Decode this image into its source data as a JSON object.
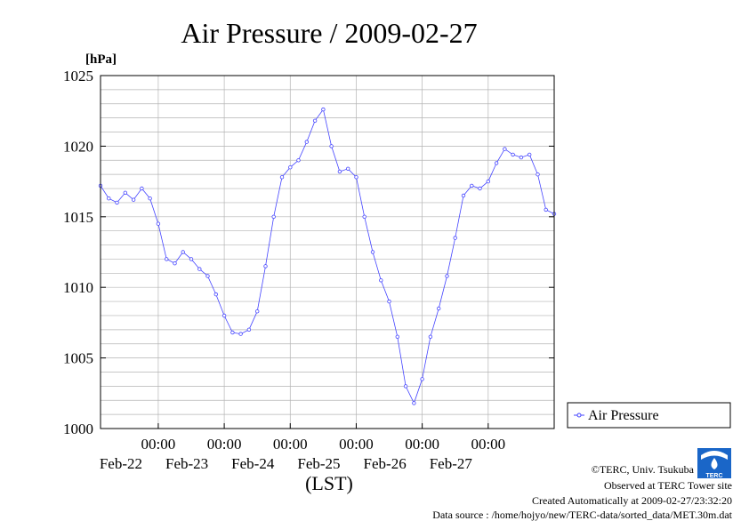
{
  "title": "Air Pressure / 2009-02-27",
  "yunit": "[hPa]",
  "xlabel": "(LST)",
  "legend_label": "Air Pressure",
  "credits": {
    "line1": "©TERC, Univ. Tsukuba",
    "line2": "Observed at TERC Tower site",
    "line3": "Created Automatically at 2009-02-27/23:32:20",
    "line4": "Data source : /home/hojyo/new/TERC-data/sorted_data/MET.30m.dat"
  },
  "logo_text": "TERC",
  "colors": {
    "series": "#4444ff",
    "grid": "#b4b4b4"
  },
  "chart_data": {
    "type": "line",
    "ylim": [
      1000,
      1025
    ],
    "yticks": [
      1000,
      1005,
      1010,
      1015,
      1020,
      1025
    ],
    "ytick_labels": [
      "1000",
      "1005",
      "1010",
      "1015",
      "1020",
      "1025"
    ],
    "xlim_days": [
      "2009-02-21 03:00",
      "2009-02-28 00:00"
    ],
    "xtick_labels": [
      {
        "time": "00:00",
        "date": "Feb-22"
      },
      {
        "time": "00:00",
        "date": "Feb-23"
      },
      {
        "time": "00:00",
        "date": "Feb-24"
      },
      {
        "time": "00:00",
        "date": "Feb-25"
      },
      {
        "time": "00:00",
        "date": "Feb-26"
      },
      {
        "time": "00:00",
        "date": "Feb-27"
      }
    ],
    "series": [
      {
        "name": "Air Pressure",
        "points": [
          [
            "2009-02-21 03:00",
            1017.2
          ],
          [
            "2009-02-21 06:00",
            1016.3
          ],
          [
            "2009-02-21 09:00",
            1016.0
          ],
          [
            "2009-02-21 12:00",
            1016.7
          ],
          [
            "2009-02-21 15:00",
            1016.2
          ],
          [
            "2009-02-21 18:00",
            1017.0
          ],
          [
            "2009-02-21 21:00",
            1016.3
          ],
          [
            "2009-02-22 00:00",
            1014.5
          ],
          [
            "2009-02-22 03:00",
            1012.0
          ],
          [
            "2009-02-22 06:00",
            1011.7
          ],
          [
            "2009-02-22 09:00",
            1012.5
          ],
          [
            "2009-02-22 12:00",
            1012.0
          ],
          [
            "2009-02-22 15:00",
            1011.3
          ],
          [
            "2009-02-22 18:00",
            1010.8
          ],
          [
            "2009-02-22 21:00",
            1009.5
          ],
          [
            "2009-02-23 00:00",
            1008.0
          ],
          [
            "2009-02-23 03:00",
            1006.8
          ],
          [
            "2009-02-23 06:00",
            1006.7
          ],
          [
            "2009-02-23 09:00",
            1007.0
          ],
          [
            "2009-02-23 12:00",
            1008.3
          ],
          [
            "2009-02-23 15:00",
            1011.5
          ],
          [
            "2009-02-23 18:00",
            1015.0
          ],
          [
            "2009-02-23 21:00",
            1017.8
          ],
          [
            "2009-02-24 00:00",
            1018.5
          ],
          [
            "2009-02-24 03:00",
            1019.0
          ],
          [
            "2009-02-24 06:00",
            1020.3
          ],
          [
            "2009-02-24 09:00",
            1021.8
          ],
          [
            "2009-02-24 12:00",
            1022.6
          ],
          [
            "2009-02-24 15:00",
            1020.0
          ],
          [
            "2009-02-24 18:00",
            1018.2
          ],
          [
            "2009-02-24 21:00",
            1018.4
          ],
          [
            "2009-02-25 00:00",
            1017.8
          ],
          [
            "2009-02-25 03:00",
            1015.0
          ],
          [
            "2009-02-25 06:00",
            1012.5
          ],
          [
            "2009-02-25 09:00",
            1010.5
          ],
          [
            "2009-02-25 12:00",
            1009.0
          ],
          [
            "2009-02-25 15:00",
            1006.5
          ],
          [
            "2009-02-25 18:00",
            1003.0
          ],
          [
            "2009-02-25 21:00",
            1001.8
          ],
          [
            "2009-02-26 00:00",
            1003.5
          ],
          [
            "2009-02-26 03:00",
            1006.5
          ],
          [
            "2009-02-26 06:00",
            1008.5
          ],
          [
            "2009-02-26 09:00",
            1010.8
          ],
          [
            "2009-02-26 12:00",
            1013.5
          ],
          [
            "2009-02-26 15:00",
            1016.5
          ],
          [
            "2009-02-26 18:00",
            1017.2
          ],
          [
            "2009-02-26 21:00",
            1017.0
          ],
          [
            "2009-02-27 00:00",
            1017.5
          ],
          [
            "2009-02-27 03:00",
            1018.8
          ],
          [
            "2009-02-27 06:00",
            1019.8
          ],
          [
            "2009-02-27 09:00",
            1019.4
          ],
          [
            "2009-02-27 12:00",
            1019.2
          ],
          [
            "2009-02-27 15:00",
            1019.4
          ],
          [
            "2009-02-27 18:00",
            1018.0
          ],
          [
            "2009-02-27 21:00",
            1015.5
          ],
          [
            "2009-02-28 00:00",
            1015.2
          ]
        ]
      }
    ],
    "grid": true,
    "legend_position": "right"
  }
}
